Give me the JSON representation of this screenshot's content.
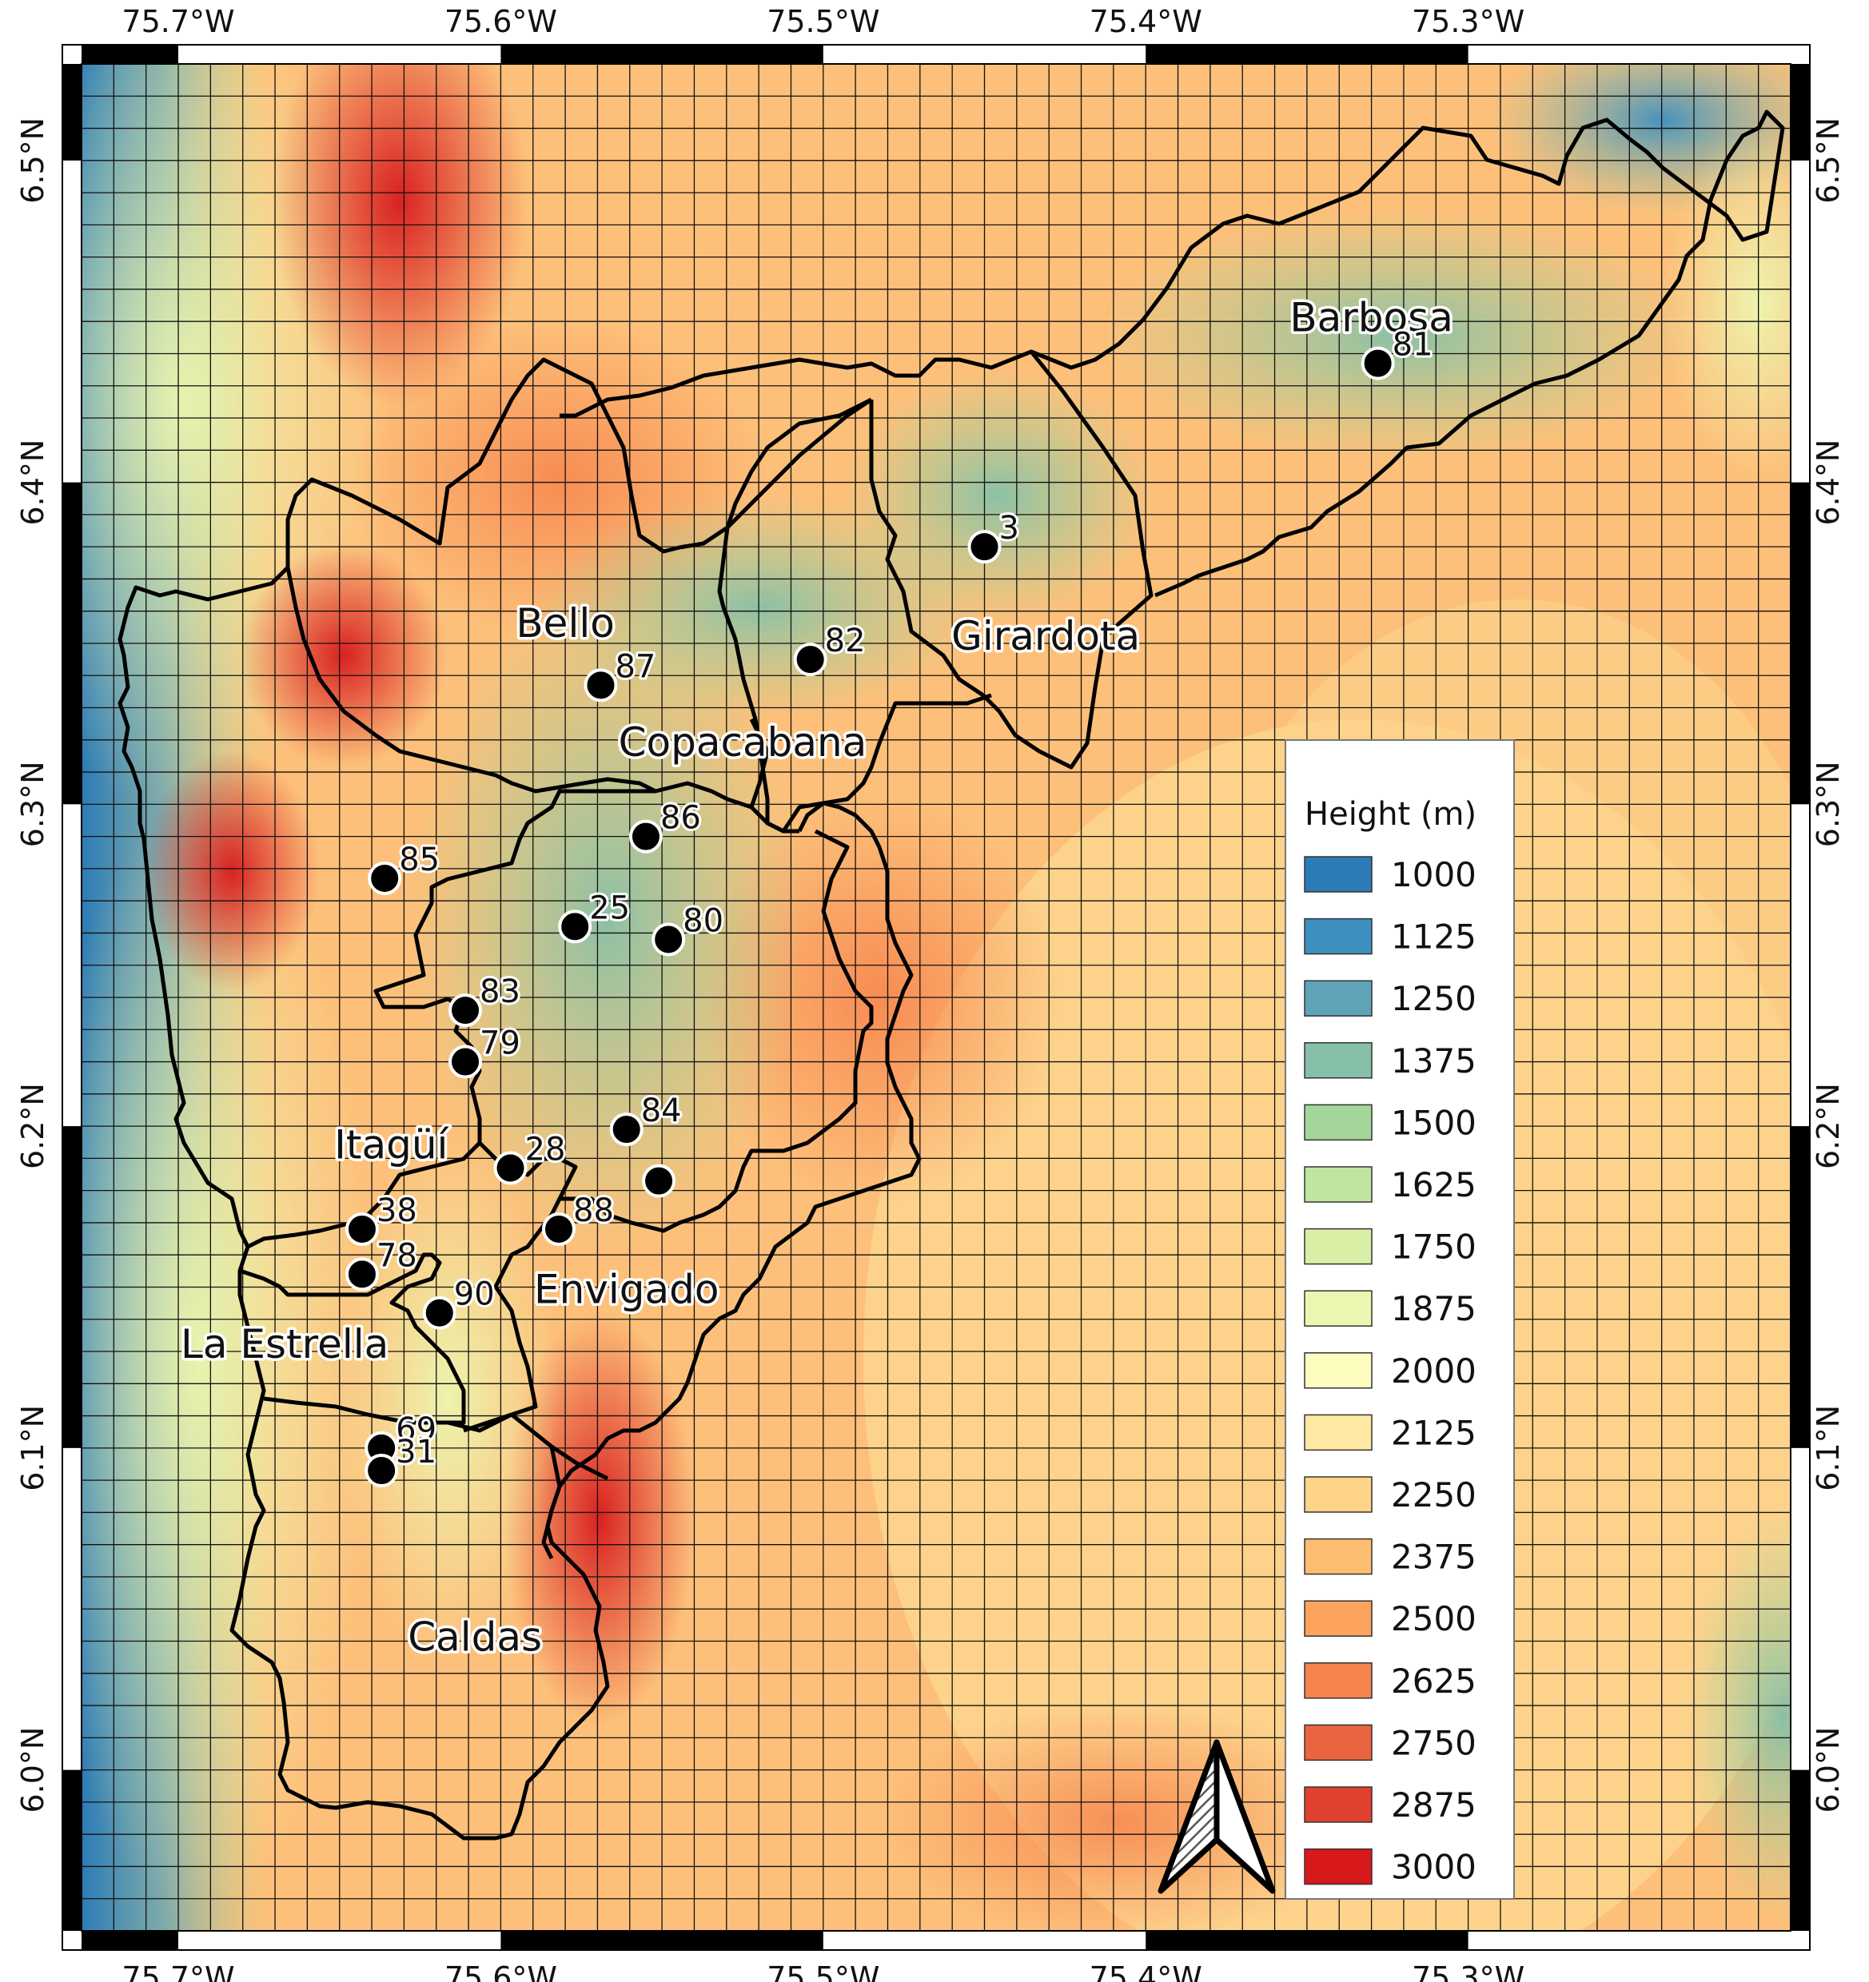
{
  "map": {
    "axes": {
      "x_ticks": [
        "75.7°W",
        "75.6°W",
        "75.5°W",
        "75.4°W",
        "75.3°W"
      ],
      "y_ticks": [
        "6.5°N",
        "6.4°N",
        "6.3°N",
        "6.2°N",
        "6.1°N",
        "6.0°N"
      ],
      "lon_range": [
        -75.73,
        -75.2
      ],
      "lat_range": [
        5.95,
        6.53
      ]
    },
    "grid": "on",
    "colormap": [
      "#2c7bb6",
      "#3d8fc0",
      "#5fa4b6",
      "#86c0a8",
      "#a4d69a",
      "#c0e5a0",
      "#d9efa6",
      "#ecf6b0",
      "#fdfdbf",
      "#fee8a3",
      "#fed48a",
      "#fdbd70",
      "#fca35e",
      "#f6834c",
      "#eb6440",
      "#e0422f",
      "#d7191c"
    ],
    "legend": {
      "title": "Height (m)",
      "values": [
        "1000",
        "1125",
        "1250",
        "1375",
        "1500",
        "1625",
        "1750",
        "1875",
        "2000",
        "2125",
        "2250",
        "2375",
        "2500",
        "2625",
        "2750",
        "2875",
        "3000"
      ]
    },
    "municipalities": [
      {
        "name": "Barbosa",
        "lon": -75.33,
        "lat": 6.447
      },
      {
        "name": "Bello",
        "lon": -75.58,
        "lat": 6.352
      },
      {
        "name": "Girardota",
        "lon": -75.431,
        "lat": 6.348
      },
      {
        "name": "Copacabana",
        "lon": -75.525,
        "lat": 6.315
      },
      {
        "name": "Itagüí",
        "lon": -75.634,
        "lat": 6.19
      },
      {
        "name": "Envigado",
        "lon": -75.561,
        "lat": 6.145
      },
      {
        "name": "La Estrella",
        "lon": -75.667,
        "lat": 6.128
      },
      {
        "name": "Caldas",
        "lon": -75.608,
        "lat": 6.037
      }
    ],
    "stations": [
      {
        "id": "81",
        "lon": -75.328,
        "lat": 6.437
      },
      {
        "id": "3",
        "lon": -75.45,
        "lat": 6.38
      },
      {
        "id": "82",
        "lon": -75.504,
        "lat": 6.345
      },
      {
        "id": "87",
        "lon": -75.569,
        "lat": 6.337
      },
      {
        "id": "86",
        "lon": -75.555,
        "lat": 6.29
      },
      {
        "id": "85",
        "lon": -75.636,
        "lat": 6.277
      },
      {
        "id": "25",
        "lon": -75.577,
        "lat": 6.262
      },
      {
        "id": "80",
        "lon": -75.548,
        "lat": 6.258
      },
      {
        "id": "83",
        "lon": -75.611,
        "lat": 6.236
      },
      {
        "id": "79",
        "lon": -75.611,
        "lat": 6.22
      },
      {
        "id": "84",
        "lon": -75.561,
        "lat": 6.199
      },
      {
        "id": "",
        "lon": -75.551,
        "lat": 6.183
      },
      {
        "id": "28",
        "lon": -75.597,
        "lat": 6.187
      },
      {
        "id": "88",
        "lon": -75.582,
        "lat": 6.168
      },
      {
        "id": "38",
        "lon": -75.643,
        "lat": 6.168
      },
      {
        "id": "78",
        "lon": -75.643,
        "lat": 6.154
      },
      {
        "id": "90",
        "lon": -75.619,
        "lat": 6.142
      },
      {
        "id": "69",
        "lon": -75.637,
        "lat": 6.1
      },
      {
        "id": "31",
        "lon": -75.637,
        "lat": 6.093
      }
    ],
    "north_arrow": "north-arrow-icon"
  }
}
